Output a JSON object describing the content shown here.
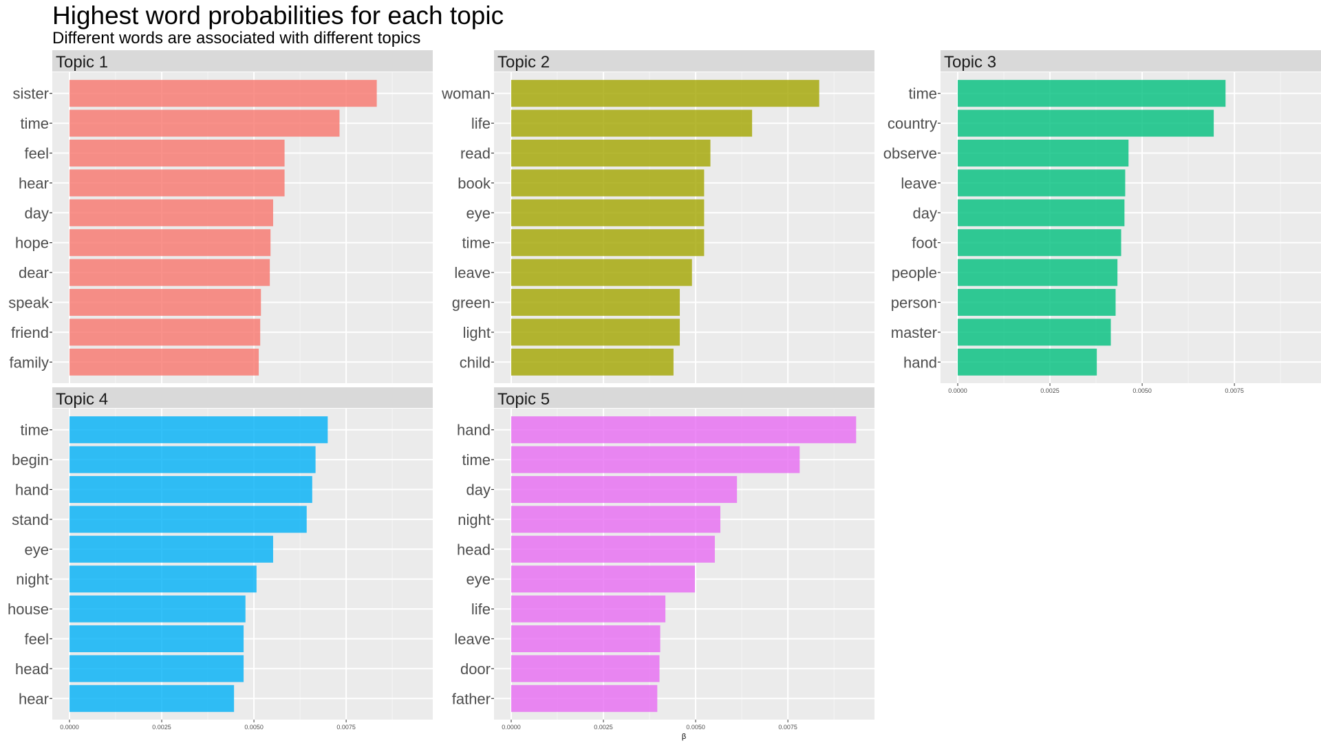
{
  "chart_data": {
    "type": "bar",
    "title": "Highest word probabilities for each topic",
    "subtitle": "Different words are associated with different topics",
    "xlabel": "β",
    "ylabel": "",
    "xlim": [
      0,
      0.0094
    ],
    "x_ticks": [
      "0.0000",
      "0.0025",
      "0.0050",
      "0.0075"
    ],
    "grid": true,
    "orientation": "horizontal",
    "facets": [
      {
        "name": "Topic 1",
        "color": "#F8766D",
        "categories": [
          "sister",
          "time",
          "feel",
          "hear",
          "day",
          "hope",
          "dear",
          "speak",
          "friend",
          "family"
        ],
        "values": [
          0.00833,
          0.00732,
          0.00583,
          0.00583,
          0.00552,
          0.00545,
          0.00543,
          0.00519,
          0.00517,
          0.00513
        ]
      },
      {
        "name": "Topic 2",
        "color": "#A3A500",
        "categories": [
          "woman",
          "life",
          "read",
          "book",
          "eye",
          "time",
          "leave",
          "green",
          "light",
          "child"
        ],
        "values": [
          0.00835,
          0.00653,
          0.0054,
          0.00523,
          0.00523,
          0.00523,
          0.0049,
          0.00457,
          0.00457,
          0.0044
        ]
      },
      {
        "name": "Topic 3",
        "color": "#00BF7D",
        "categories": [
          "time",
          "country",
          "observe",
          "leave",
          "day",
          "foot",
          "people",
          "person",
          "master",
          "hand"
        ],
        "values": [
          0.00726,
          0.00694,
          0.00463,
          0.00454,
          0.00452,
          0.00443,
          0.00433,
          0.00428,
          0.00415,
          0.00377
        ]
      },
      {
        "name": "Topic 4",
        "color": "#00B0F6",
        "categories": [
          "time",
          "begin",
          "hand",
          "stand",
          "eye",
          "night",
          "house",
          "feel",
          "head",
          "hear"
        ],
        "values": [
          0.007,
          0.00667,
          0.00658,
          0.00643,
          0.00552,
          0.00507,
          0.00477,
          0.00472,
          0.00472,
          0.00446
        ]
      },
      {
        "name": "Topic 5",
        "color": "#E76BF3",
        "categories": [
          "hand",
          "time",
          "day",
          "night",
          "head",
          "eye",
          "life",
          "leave",
          "door",
          "father"
        ],
        "values": [
          0.00935,
          0.00782,
          0.00612,
          0.00567,
          0.00552,
          0.00498,
          0.00418,
          0.00404,
          0.00402,
          0.00396
        ]
      }
    ]
  }
}
